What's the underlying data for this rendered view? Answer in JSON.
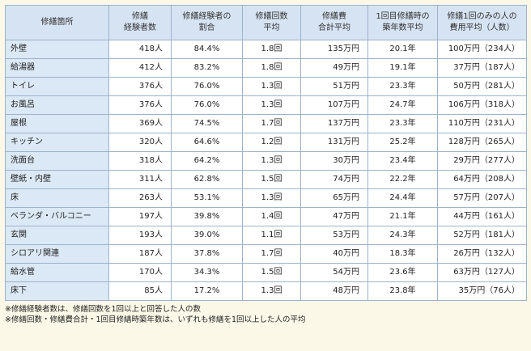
{
  "headers": [
    [
      "修繕箇所"
    ],
    [
      "修繕",
      "経験者数"
    ],
    [
      "修繕経験者の",
      "割合"
    ],
    [
      "修繕回数",
      "平均"
    ],
    [
      "修繕費",
      "合計平均"
    ],
    [
      "1回目修繕時の",
      "築年数平均"
    ],
    [
      "修繕1回のみの人の",
      "費用平均（人数）"
    ]
  ],
  "rows": [
    [
      "外壁",
      "418人",
      "84.4%",
      "1.8回",
      "135万円",
      "20.1年",
      "100万円（234人）"
    ],
    [
      "給湯器",
      "412人",
      "83.2%",
      "1.8回",
      "49万円",
      "19.1年",
      "37万円（187人）"
    ],
    [
      "トイレ",
      "376人",
      "76.0%",
      "1.3回",
      "51万円",
      "23.3年",
      "50万円（281人）"
    ],
    [
      "お風呂",
      "376人",
      "76.0%",
      "1.3回",
      "107万円",
      "24.7年",
      "106万円（318人）"
    ],
    [
      "屋根",
      "369人",
      "74.5%",
      "1.7回",
      "137万円",
      "23.3年",
      "110万円（231人）"
    ],
    [
      "キッチン",
      "320人",
      "64.6%",
      "1.2回",
      "131万円",
      "25.2年",
      "128万円（265人）"
    ],
    [
      "洗面台",
      "318人",
      "64.2%",
      "1.3回",
      "30万円",
      "23.4年",
      "29万円（277人）"
    ],
    [
      "壁紙・内壁",
      "311人",
      "62.8%",
      "1.5回",
      "74万円",
      "22.2年",
      "64万円（208人）"
    ],
    [
      "床",
      "263人",
      "53.1%",
      "1.3回",
      "65万円",
      "24.4年",
      "57万円（207人）"
    ],
    [
      "ベランダ・バルコニー",
      "197人",
      "39.8%",
      "1.4回",
      "47万円",
      "21.1年",
      "44万円（161人）"
    ],
    [
      "玄関",
      "193人",
      "39.0%",
      "1.1回",
      "53万円",
      "24.3年",
      "52万円（181人）"
    ],
    [
      "シロアリ関連",
      "187人",
      "37.8%",
      "1.7回",
      "40万円",
      "18.3年",
      "26万円（132人）"
    ],
    [
      "給水管",
      "170人",
      "34.3%",
      "1.5回",
      "54万円",
      "23.6年",
      "63万円（127人）"
    ],
    [
      "床下",
      "85人",
      "17.2%",
      "1.3回",
      "48万円",
      "23.8年",
      "35万円（76人）"
    ]
  ],
  "notes": [
    "※修繕経験者数は、修繕回数を1回以上と回答した人の数",
    "※修繕回数・修繕費合計・1回目修繕時築年数は、いずれも修繕を1回以上した人の平均"
  ]
}
